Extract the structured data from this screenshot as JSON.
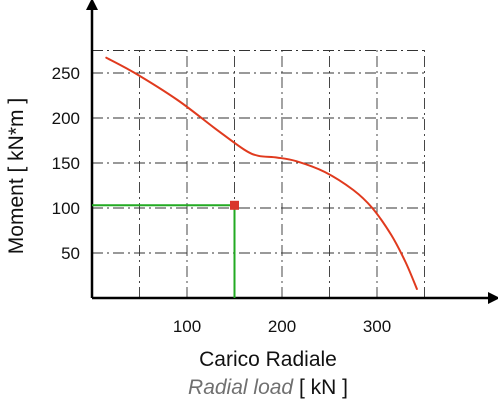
{
  "chart_data": {
    "type": "line",
    "xlim": [
      0,
      400
    ],
    "ylim": [
      0,
      280
    ],
    "x_ticks": [
      100,
      200,
      300
    ],
    "y_ticks": [
      50,
      100,
      150,
      200,
      250
    ],
    "x_tick_labels": [
      "100",
      "200",
      "300"
    ],
    "y_tick_labels": [
      "50",
      "100",
      "150",
      "200",
      "250"
    ],
    "grid_x": [
      50,
      100,
      150,
      200,
      250,
      300,
      350
    ],
    "grid_y": [
      50,
      100,
      150,
      200,
      250,
      275
    ],
    "grid": true,
    "xlabel": "Carico Radiale",
    "xlabel_secondary_italic": "Radial load",
    "xlabel_secondary_unit": " [ kN ]",
    "ylabel": "Moment [ kN*m ]",
    "series": [
      {
        "color": "#e03a1e",
        "x": [
          15,
          45,
          90,
          130,
          160,
          175,
          195,
          215,
          245,
          275,
          295,
          315,
          330,
          342
        ],
        "y": [
          267,
          250,
          220,
          188,
          165,
          158,
          156,
          152,
          140,
          120,
          100,
          70,
          40,
          10
        ]
      }
    ],
    "marker": {
      "x": 150,
      "y": 103,
      "color": "#d9352a"
    },
    "guide_color": "#22aa22"
  }
}
